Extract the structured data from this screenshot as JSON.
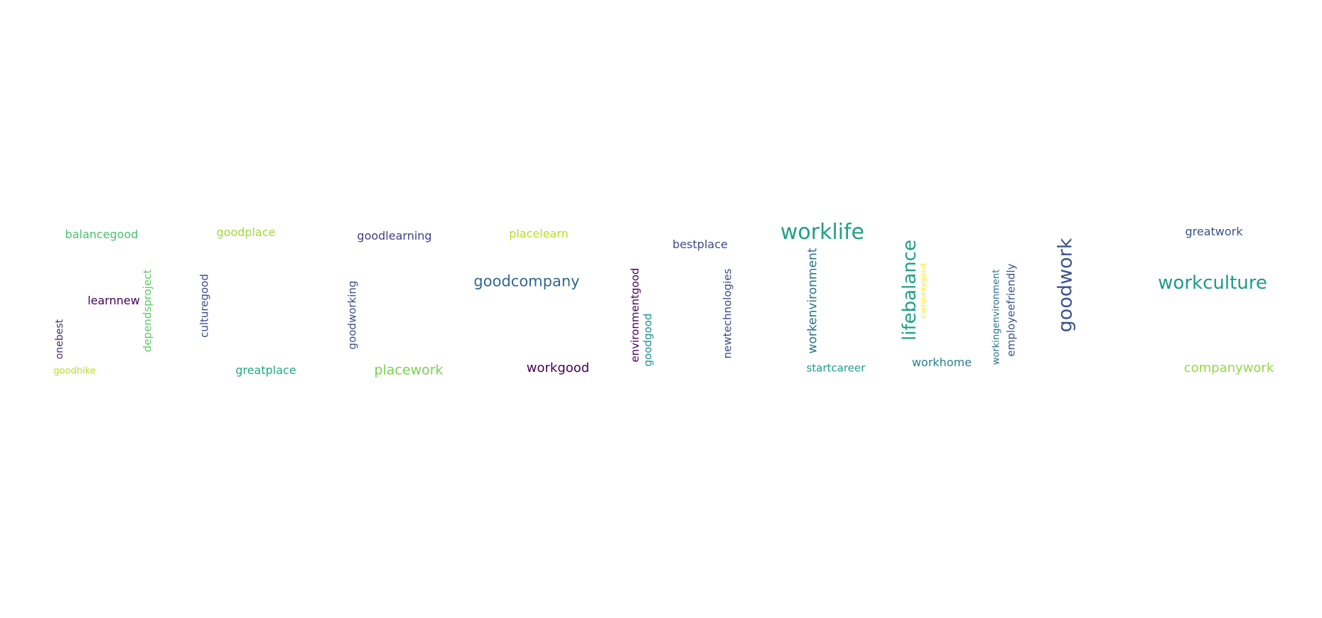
{
  "words": [
    {
      "text": "balancegood",
      "color": "#4ac16d"
    },
    {
      "text": "goodplace",
      "color": "#a0da39"
    },
    {
      "text": "goodlearning",
      "color": "#433e85"
    },
    {
      "text": "placelearn",
      "color": "#b5de2b"
    },
    {
      "text": "bestplace",
      "color": "#3e4989"
    },
    {
      "text": "worklife",
      "color": "#1fa187"
    },
    {
      "text": "greatwork",
      "color": "#3b528b"
    },
    {
      "text": "learnnew",
      "color": "#440154"
    },
    {
      "text": "dependsproject",
      "color": "#5ec962"
    },
    {
      "text": "culturegood",
      "color": "#3e4a89"
    },
    {
      "text": "onebest",
      "color": "#472d7b"
    },
    {
      "text": "goodworking",
      "color": "#3b528b"
    },
    {
      "text": "goodcompany",
      "color": "#31688e"
    },
    {
      "text": "environmentgood",
      "color": "#440154"
    },
    {
      "text": "goodgood",
      "color": "#21918c"
    },
    {
      "text": "newtechnologies",
      "color": "#3e4989"
    },
    {
      "text": "workenvironment",
      "color": "#2c728e"
    },
    {
      "text": "lifebalance",
      "color": "#1fa187"
    },
    {
      "text": "companygood",
      "color": "#fde725"
    },
    {
      "text": "workingenvironment",
      "color": "#2c728e"
    },
    {
      "text": "employeefriendly",
      "color": "#3b528b"
    },
    {
      "text": "goodwork",
      "color": "#3b528b"
    },
    {
      "text": "workculture",
      "color": "#1f9a8a"
    },
    {
      "text": "goodhike",
      "color": "#b8de29"
    },
    {
      "text": "greatplace",
      "color": "#22a884"
    },
    {
      "text": "placework",
      "color": "#7ad151"
    },
    {
      "text": "workgood",
      "color": "#440154"
    },
    {
      "text": "startcareer",
      "color": "#1f9e89"
    },
    {
      "text": "workhome",
      "color": "#26828e"
    },
    {
      "text": "companywork",
      "color": "#95d840"
    }
  ]
}
